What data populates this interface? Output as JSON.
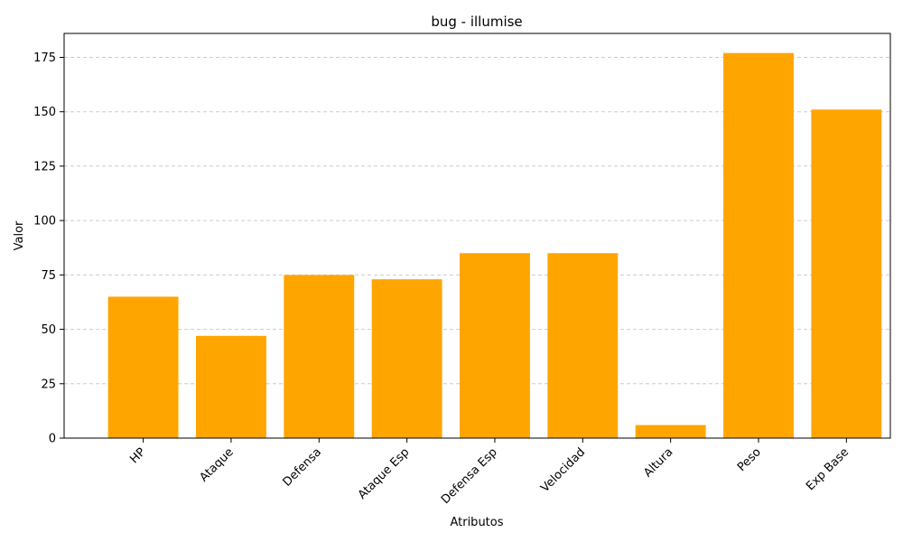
{
  "chart_data": {
    "type": "bar",
    "title": "bug - illumise",
    "xlabel": "Atributos",
    "ylabel": "Valor",
    "categories": [
      "HP",
      "Ataque",
      "Defensa",
      "Ataque Esp",
      "Defensa Esp",
      "Velocidad",
      "Altura",
      "Peso",
      "Exp Base"
    ],
    "values": [
      65,
      47,
      75,
      73,
      85,
      85,
      6,
      177,
      151
    ],
    "ylim": [
      0,
      186
    ],
    "yticks": [
      0,
      25,
      50,
      75,
      100,
      125,
      150,
      175
    ],
    "grid": "y-dashed",
    "bar_color": "#ffa500"
  }
}
